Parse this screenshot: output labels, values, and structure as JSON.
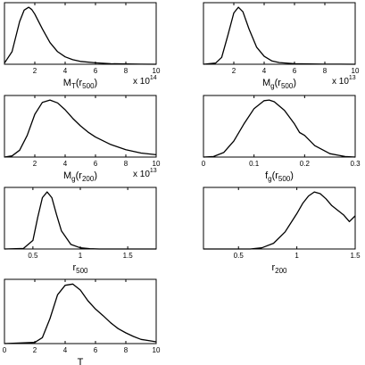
{
  "chart_data": [
    {
      "type": "line",
      "xlabel": "M",
      "xlabel_sub": "T",
      "xlabel_suffix": "(r",
      "xlabel_suffix_sub": "500",
      "xlabel_close": ")",
      "xlim": [
        0,
        10
      ],
      "ticks": [
        "2",
        "4",
        "6",
        "8",
        "10"
      ],
      "tick_values": [
        2,
        4,
        6,
        8,
        10
      ],
      "multiplier": "x 10",
      "multiplier_exp": "14",
      "x": [
        0.0,
        0.5,
        1.0,
        1.3,
        1.6,
        1.8,
        2.0,
        2.5,
        3.0,
        3.5,
        4.0,
        4.5,
        5.0,
        6.0,
        7.0,
        8.0,
        9.0,
        10.0
      ],
      "y": [
        0.02,
        0.22,
        0.75,
        0.95,
        1.0,
        0.96,
        0.88,
        0.62,
        0.38,
        0.22,
        0.13,
        0.08,
        0.05,
        0.025,
        0.01,
        0.005,
        0.002,
        0.0
      ],
      "ylim": [
        0,
        1.08
      ]
    },
    {
      "type": "line",
      "xlabel": "M",
      "xlabel_sub": "g",
      "xlabel_suffix": "(r",
      "xlabel_suffix_sub": "500",
      "xlabel_close": ")",
      "xlim": [
        0,
        10
      ],
      "ticks": [
        "2",
        "4",
        "6",
        "8",
        "10"
      ],
      "tick_values": [
        2,
        4,
        6,
        8,
        10
      ],
      "multiplier": "x 10",
      "multiplier_exp": "13",
      "x": [
        0.0,
        0.8,
        1.2,
        1.6,
        2.0,
        2.3,
        2.6,
        3.0,
        3.5,
        4.0,
        4.5,
        5.0,
        6.0,
        7.0,
        8.0,
        9.0,
        10.0
      ],
      "y": [
        0.0,
        0.02,
        0.12,
        0.5,
        0.9,
        1.0,
        0.92,
        0.62,
        0.3,
        0.14,
        0.06,
        0.03,
        0.01,
        0.004,
        0.002,
        0.001,
        0.0
      ],
      "ylim": [
        0,
        1.08
      ]
    },
    {
      "type": "line",
      "xlabel": "M",
      "xlabel_sub": "g",
      "xlabel_suffix": "(r",
      "xlabel_suffix_sub": "200",
      "xlabel_close": ")",
      "xlim": [
        0,
        10
      ],
      "ticks": [
        "2",
        "4",
        "6",
        "8",
        "10"
      ],
      "tick_values": [
        2,
        4,
        6,
        8,
        10
      ],
      "multiplier": "x 10",
      "multiplier_exp": "13",
      "x": [
        0.0,
        0.5,
        1.0,
        1.5,
        2.0,
        2.5,
        3.0,
        3.5,
        4.0,
        4.5,
        5.0,
        5.5,
        6.0,
        7.0,
        8.0,
        9.0,
        10.0
      ],
      "y": [
        0.0,
        0.02,
        0.12,
        0.38,
        0.75,
        0.96,
        1.0,
        0.95,
        0.83,
        0.68,
        0.55,
        0.44,
        0.35,
        0.22,
        0.13,
        0.07,
        0.04
      ],
      "ylim": [
        0,
        1.08
      ]
    },
    {
      "type": "line",
      "xlabel": "f",
      "xlabel_sub": "g",
      "xlabel_suffix": "(r",
      "xlabel_suffix_sub": "500",
      "xlabel_close": ")",
      "xlim": [
        0,
        0.3
      ],
      "ticks": [
        "0",
        "0.1",
        "0.2",
        "0.3"
      ],
      "tick_values": [
        0,
        0.1,
        0.2,
        0.3
      ],
      "multiplier": "",
      "multiplier_exp": "",
      "x": [
        0.0,
        0.02,
        0.04,
        0.06,
        0.08,
        0.1,
        0.12,
        0.13,
        0.14,
        0.16,
        0.18,
        0.19,
        0.2,
        0.22,
        0.25,
        0.28,
        0.3
      ],
      "y": [
        0.0,
        0.01,
        0.08,
        0.28,
        0.58,
        0.85,
        0.99,
        1.0,
        0.97,
        0.82,
        0.58,
        0.43,
        0.38,
        0.2,
        0.06,
        0.01,
        0.0
      ],
      "ylim": [
        0,
        1.08
      ]
    },
    {
      "type": "line",
      "xlabel": "r",
      "xlabel_sub": "500",
      "xlabel_suffix": "",
      "xlabel_suffix_sub": "",
      "xlabel_close": "",
      "xlim": [
        0.2,
        1.8
      ],
      "ticks": [
        "0.5",
        "1",
        "1.5"
      ],
      "tick_values": [
        0.5,
        1.0,
        1.5
      ],
      "multiplier": "",
      "multiplier_exp": "",
      "x": [
        0.2,
        0.4,
        0.5,
        0.55,
        0.6,
        0.65,
        0.7,
        0.75,
        0.8,
        0.9,
        1.0,
        1.1,
        1.2,
        1.4,
        1.8
      ],
      "y": [
        0.0,
        0.01,
        0.15,
        0.55,
        0.9,
        1.0,
        0.9,
        0.6,
        0.32,
        0.08,
        0.02,
        0.005,
        0.0,
        0.0,
        0.0
      ],
      "ylim": [
        0,
        1.08
      ]
    },
    {
      "type": "line",
      "xlabel": "r",
      "xlabel_sub": "200",
      "xlabel_suffix": "",
      "xlabel_suffix_sub": "",
      "xlabel_close": "",
      "xlim": [
        0.2,
        1.5
      ],
      "ticks": [
        "0.5",
        "1",
        "1.5"
      ],
      "tick_values": [
        0.5,
        1.0,
        1.5
      ],
      "multiplier": "",
      "multiplier_exp": "",
      "x": [
        0.2,
        0.6,
        0.7,
        0.8,
        0.9,
        1.0,
        1.05,
        1.1,
        1.15,
        1.2,
        1.25,
        1.3,
        1.35,
        1.4,
        1.45,
        1.5
      ],
      "y": [
        0.0,
        0.0,
        0.02,
        0.1,
        0.3,
        0.62,
        0.8,
        0.93,
        1.0,
        0.97,
        0.88,
        0.76,
        0.68,
        0.6,
        0.48,
        0.58
      ],
      "ylim": [
        0,
        1.08
      ]
    },
    {
      "type": "line",
      "xlabel": "T",
      "xlabel_sub": "",
      "xlabel_suffix": "",
      "xlabel_suffix_sub": "",
      "xlabel_close": "",
      "xlim": [
        0,
        10
      ],
      "ticks": [
        "0",
        "2",
        "4",
        "6",
        "8",
        "10"
      ],
      "tick_values": [
        0,
        2,
        4,
        6,
        8,
        10
      ],
      "multiplier": "",
      "multiplier_exp": "",
      "x": [
        0.0,
        2.0,
        2.5,
        3.0,
        3.5,
        4.0,
        4.5,
        5.0,
        5.5,
        6.0,
        6.5,
        7.0,
        7.5,
        8.0,
        8.5,
        9.0,
        10.0
      ],
      "y": [
        0.0,
        0.02,
        0.1,
        0.42,
        0.82,
        0.98,
        1.0,
        0.9,
        0.72,
        0.58,
        0.47,
        0.35,
        0.25,
        0.18,
        0.12,
        0.07,
        0.03
      ],
      "ylim": [
        0,
        1.08
      ]
    }
  ]
}
